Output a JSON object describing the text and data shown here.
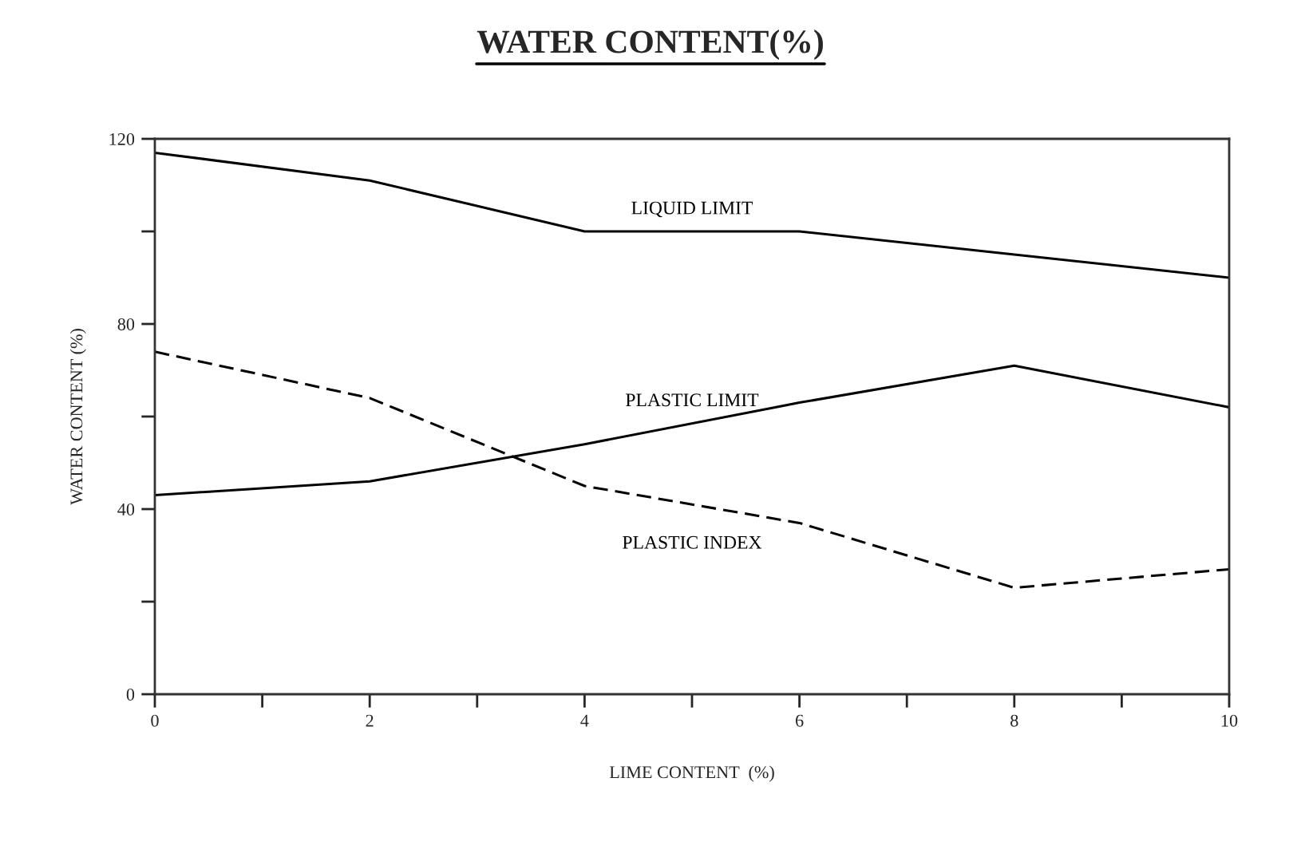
{
  "chart_data": {
    "type": "line",
    "title": "WATER CONTENT(%)",
    "xlabel": "LIME CONTENT  (%)",
    "ylabel": "WATER CONTENT (%)",
    "x": [
      0,
      2,
      4,
      6,
      8,
      10
    ],
    "series": [
      {
        "name": "LIQUID LIMIT",
        "color": "#000000",
        "line_style": "solid",
        "values": [
          117,
          111,
          100,
          100,
          95,
          90
        ]
      },
      {
        "name": "PLASTIC LIMIT",
        "color": "#000000",
        "line_style": "solid",
        "values": [
          43,
          46,
          54,
          63,
          71,
          62
        ]
      },
      {
        "name": "PLASTIC INDEX",
        "color": "#000000",
        "line_style": "dashed",
        "values": [
          74,
          64,
          45,
          37,
          23,
          27
        ]
      }
    ],
    "xlim": [
      0,
      10
    ],
    "ylim": [
      0,
      120
    ],
    "xticks": [
      0,
      {
        "value": 1,
        "label": null
      },
      2,
      {
        "value": 3,
        "label": null
      },
      4,
      {
        "value": 5,
        "label": null
      },
      6,
      {
        "value": 7,
        "label": null
      },
      8,
      {
        "value": 9,
        "label": null
      },
      10
    ],
    "yticks": [
      0,
      {
        "value": 20,
        "label": null
      },
      40,
      {
        "value": 60,
        "label": null
      },
      80,
      {
        "value": 100,
        "label": null
      },
      120
    ],
    "grid": false,
    "legend": false,
    "marker": "none"
  }
}
